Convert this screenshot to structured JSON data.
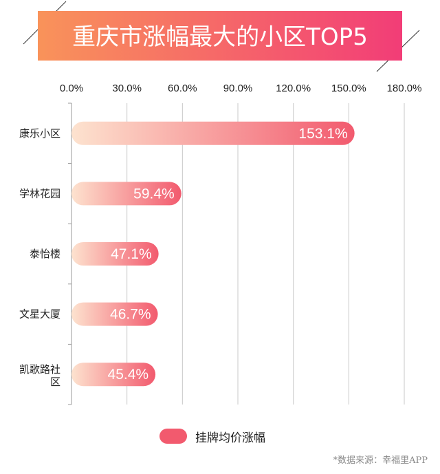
{
  "chart_data": {
    "type": "bar",
    "orientation": "horizontal",
    "title": "重庆市涨幅最大的小区TOP5",
    "categories": [
      "康乐小区",
      "学林花园",
      "泰怡楼",
      "文星大厦",
      "凯歌路社区"
    ],
    "series": [
      {
        "name": "挂牌均价涨幅",
        "values": [
          153.1,
          59.4,
          47.1,
          46.7,
          45.4
        ]
      }
    ],
    "value_labels": [
      "153.1%",
      "59.4%",
      "47.1%",
      "46.7%",
      "45.4%"
    ],
    "x_ticks": [
      "0.0%",
      "30.0%",
      "60.0%",
      "90.0%",
      "120.0%",
      "150.0%",
      "180.0%"
    ],
    "xlim": [
      0,
      180
    ],
    "x_axis_position": "top",
    "grid": true,
    "legend_position": "bottom-center",
    "colors": {
      "bar_start": "#fde3cf",
      "bar_end": "#f25a6e",
      "banner_start": "#f9935a",
      "banner_end": "#f23d77"
    }
  },
  "source_note": "*数据来源：幸福里APP"
}
